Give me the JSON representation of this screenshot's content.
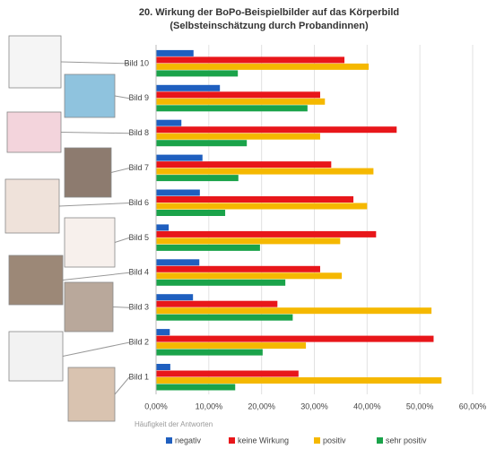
{
  "chart_data": {
    "type": "barh",
    "title": "20. Wirkung der BoPo-Beispielbilder auf das Körperbild",
    "subtitle": "(Selbsteinschätzung durch Probandinnen)",
    "x_label": "Häufigkeit der Antworten",
    "categories": [
      "Bild 1",
      "Bild 2",
      "Bild 3",
      "Bild 4",
      "Bild 5",
      "Bild 6",
      "Bild 7",
      "Bild 8",
      "Bild 9",
      "Bild 10"
    ],
    "series": [
      {
        "name": "negativ",
        "color": "#1f5fbf",
        "values": [
          2.7,
          2.6,
          7.0,
          8.2,
          2.4,
          8.3,
          8.8,
          4.8,
          12.1,
          7.1
        ]
      },
      {
        "name": "keine Wirkung",
        "color": "#e8161a",
        "values": [
          27.0,
          52.6,
          23.0,
          31.1,
          41.7,
          37.4,
          33.2,
          45.6,
          31.1,
          35.7
        ]
      },
      {
        "name": "positiv",
        "color": "#f5b800",
        "values": [
          54.1,
          28.4,
          52.2,
          35.2,
          34.9,
          40.0,
          41.2,
          31.1,
          32.0,
          40.3
        ]
      },
      {
        "name": "sehr positiv",
        "color": "#1aa34a",
        "values": [
          15.0,
          20.2,
          25.9,
          24.5,
          19.7,
          13.1,
          15.6,
          17.2,
          28.7,
          15.5
        ]
      }
    ],
    "xlim": [
      0,
      60
    ],
    "xticks": [
      {
        "value": 0,
        "label": "0,00%"
      },
      {
        "value": 10,
        "label": "10,00%"
      },
      {
        "value": 20,
        "label": "20,00%"
      },
      {
        "value": 30,
        "label": "30,00%"
      },
      {
        "value": 40,
        "label": "40,00%"
      },
      {
        "value": 50,
        "label": "50,00%"
      },
      {
        "value": 60,
        "label": "60,00%"
      }
    ],
    "grid": true,
    "legend": "bottom"
  }
}
